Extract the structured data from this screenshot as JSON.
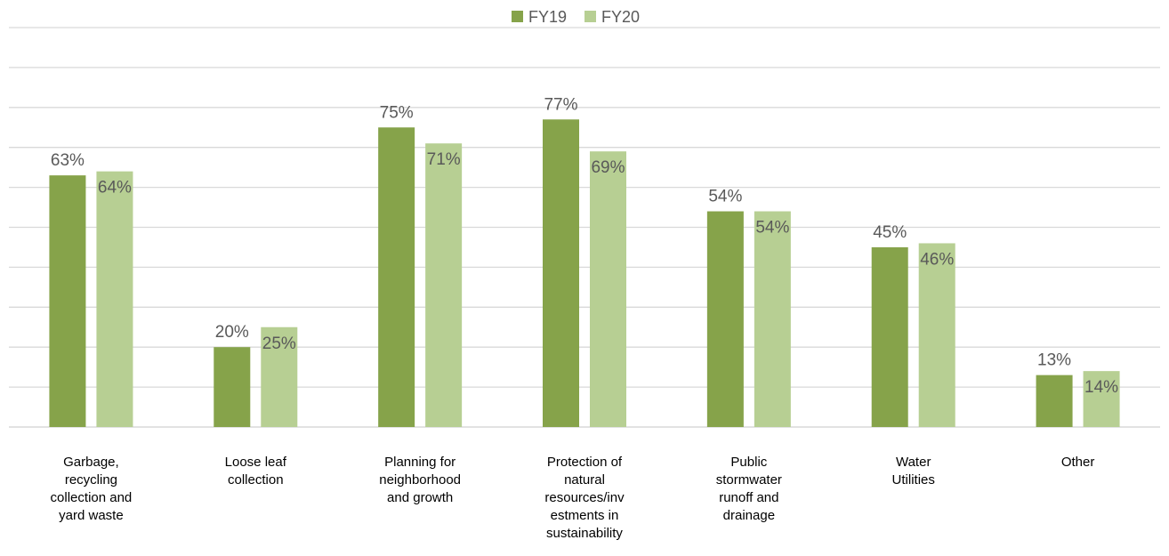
{
  "chart_data": {
    "type": "bar",
    "title": "",
    "xlabel": "",
    "ylabel": "",
    "categories": [
      "Garbage, recycling collection and yard waste",
      "Loose leaf collection",
      "Planning for neighborhood and growth",
      "Protection of natural resources/investments in sustainability",
      "Public stormwater runoff and drainage",
      "Water Utilities",
      "Other"
    ],
    "category_label_lines": [
      [
        "Garbage,",
        "recycling",
        "collection and",
        "yard waste"
      ],
      [
        "Loose leaf",
        "collection"
      ],
      [
        "Planning for",
        "neighborhood",
        "and growth"
      ],
      [
        "Protection of",
        "natural",
        "resources/inv",
        "estments in",
        "sustainability"
      ],
      [
        "Public",
        "stormwater",
        "runoff and",
        "drainage"
      ],
      [
        "Water",
        "Utilities"
      ],
      [
        "Other"
      ]
    ],
    "series": [
      {
        "name": "FY19",
        "color": "#86a34a",
        "values": [
          63,
          20,
          75,
          77,
          54,
          45,
          13
        ],
        "labels": [
          "63%",
          "20%",
          "75%",
          "77%",
          "54%",
          "45%",
          "13%"
        ]
      },
      {
        "name": "FY20",
        "color": "#b7cf93",
        "values": [
          64,
          25,
          71,
          69,
          54,
          46,
          14
        ],
        "labels": [
          "64%",
          "25%",
          "71%",
          "69%",
          "54%",
          "46%",
          "14%"
        ]
      }
    ],
    "ylim": [
      0,
      100
    ],
    "gridlines": true,
    "y_tick_labels_visible": false,
    "legend_position": "top",
    "grid_color": "#d9d9d9",
    "axis_color": "#d9d9d9"
  }
}
